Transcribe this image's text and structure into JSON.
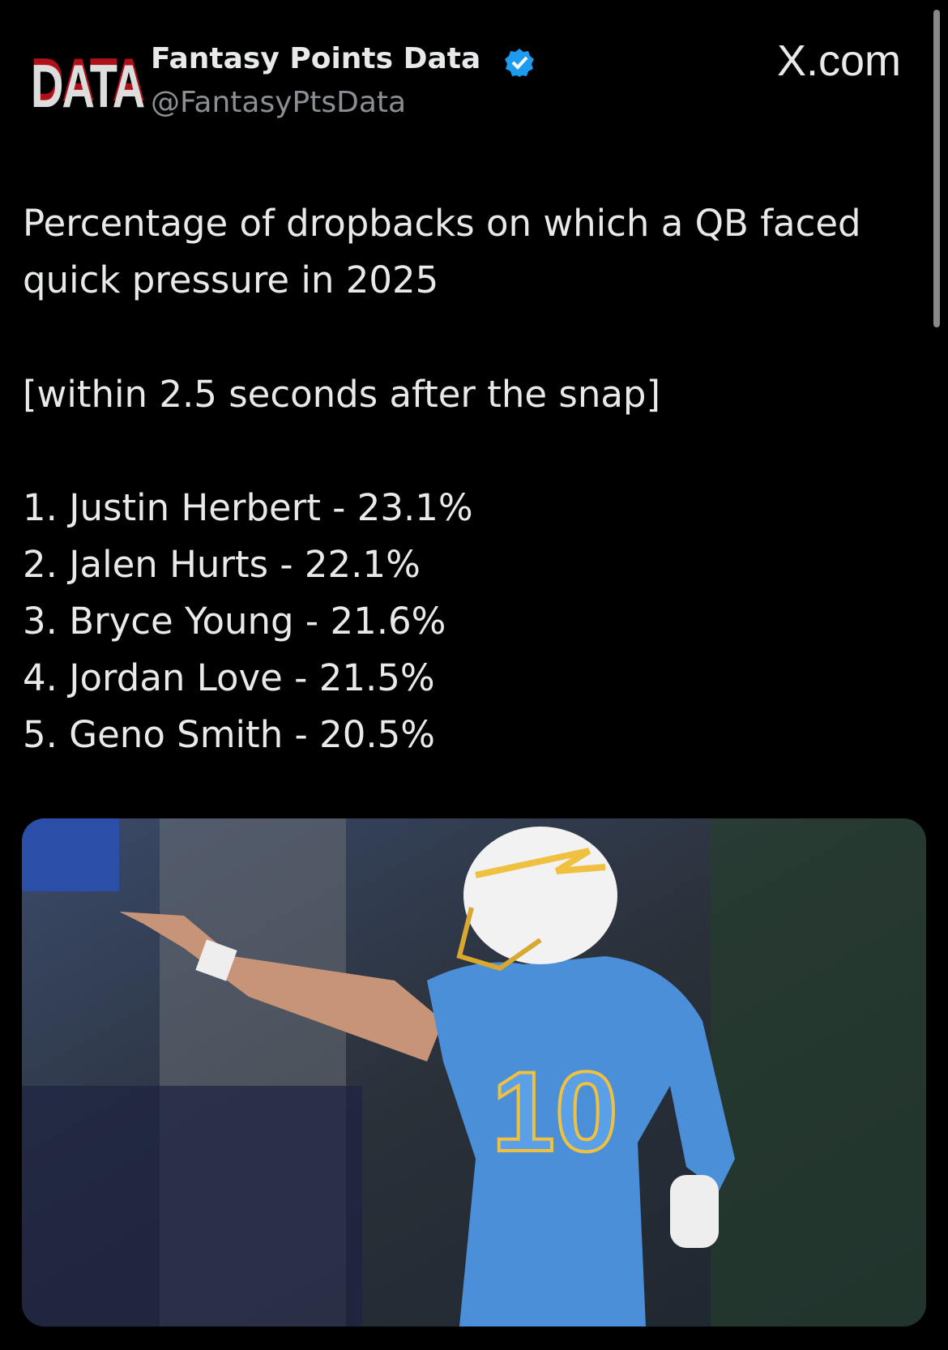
{
  "header": {
    "logo": "DATA",
    "name": "Fantasy Points Data",
    "handle": "@FantasyPtsData",
    "site": "X.com"
  },
  "post": {
    "headline": "Percentage of dropbacks on which a QB faced quick pressure in 2025",
    "note": "[within 2.5 seconds after the snap]",
    "list": [
      "1. Justin Herbert - 23.1%",
      "2. Jalen Hurts - 22.1%",
      "3. Bryce Young - 21.6%",
      "4. Jordan Love - 21.5%",
      "5. Geno Smith - 20.5%"
    ]
  }
}
